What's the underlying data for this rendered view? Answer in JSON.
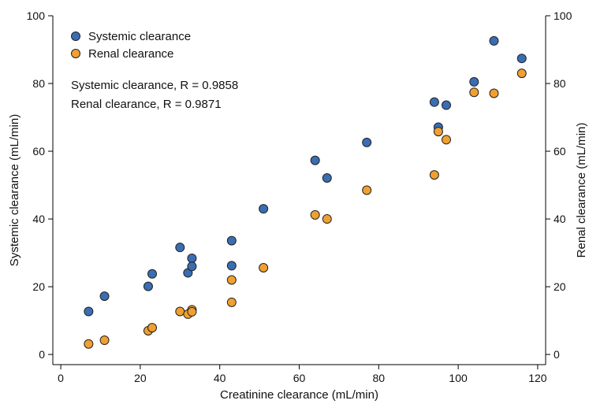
{
  "chart_data": {
    "type": "scatter",
    "title": "",
    "xlabel": "Creatinine clearance (mL/min)",
    "ylabel": "Systemic clearance (mL/min)",
    "y2label": "Renal clearance (mL/min)",
    "xlim": [
      -2,
      122
    ],
    "ylim": [
      -3,
      100
    ],
    "xticks": [
      0,
      20,
      40,
      60,
      80,
      100,
      120
    ],
    "yticks": [
      0,
      20,
      40,
      60,
      80,
      100
    ],
    "grid": false,
    "legend_position": "top-left",
    "annotations": [
      "Systemic clearance, R = 0.9858",
      "Renal clearance, R = 0.9871"
    ],
    "series": [
      {
        "name": "Systemic clearance",
        "color": "#3a6db3",
        "points": [
          {
            "x": 7,
            "y": 12.7
          },
          {
            "x": 11,
            "y": 17.2
          },
          {
            "x": 22,
            "y": 20.1
          },
          {
            "x": 23,
            "y": 23.8
          },
          {
            "x": 30,
            "y": 31.6
          },
          {
            "x": 32,
            "y": 24.1
          },
          {
            "x": 33,
            "y": 28.4
          },
          {
            "x": 33,
            "y": 26.0
          },
          {
            "x": 43,
            "y": 33.6
          },
          {
            "x": 43,
            "y": 26.2
          },
          {
            "x": 51,
            "y": 43.0
          },
          {
            "x": 64,
            "y": 57.3
          },
          {
            "x": 67,
            "y": 52.1
          },
          {
            "x": 77,
            "y": 62.6
          },
          {
            "x": 94,
            "y": 74.5
          },
          {
            "x": 95,
            "y": 67.1
          },
          {
            "x": 97,
            "y": 73.6
          },
          {
            "x": 104,
            "y": 80.5
          },
          {
            "x": 109,
            "y": 92.6
          },
          {
            "x": 116,
            "y": 87.4
          }
        ]
      },
      {
        "name": "Renal clearance",
        "color": "#f0a030",
        "points": [
          {
            "x": 7,
            "y": 3.1
          },
          {
            "x": 11,
            "y": 4.2
          },
          {
            "x": 22,
            "y": 7.0
          },
          {
            "x": 23,
            "y": 7.9
          },
          {
            "x": 30,
            "y": 12.7
          },
          {
            "x": 32,
            "y": 11.9
          },
          {
            "x": 33,
            "y": 13.2
          },
          {
            "x": 33,
            "y": 12.6
          },
          {
            "x": 43,
            "y": 22.0
          },
          {
            "x": 43,
            "y": 15.4
          },
          {
            "x": 51,
            "y": 25.6
          },
          {
            "x": 64,
            "y": 41.2
          },
          {
            "x": 67,
            "y": 40.0
          },
          {
            "x": 77,
            "y": 48.5
          },
          {
            "x": 94,
            "y": 53.0
          },
          {
            "x": 95,
            "y": 65.8
          },
          {
            "x": 97,
            "y": 63.4
          },
          {
            "x": 104,
            "y": 77.4
          },
          {
            "x": 109,
            "y": 77.1
          },
          {
            "x": 116,
            "y": 83.0
          }
        ]
      }
    ]
  }
}
